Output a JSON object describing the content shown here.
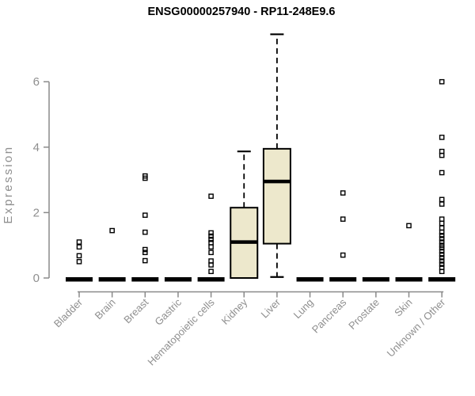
{
  "chart_data": {
    "type": "boxplot",
    "title": "ENSG00000257940 - RP11-248E9.6",
    "ylabel": "Expression",
    "xlabel": "",
    "yticks": [
      0,
      2,
      4,
      6
    ],
    "ylim": [
      0,
      6
    ],
    "grid": false,
    "legend": "none",
    "categories": [
      "Bladder",
      "Brain",
      "Breast",
      "Gastric",
      "Hematopoietic cells",
      "Kidney",
      "Liver",
      "Lung",
      "Pancreas",
      "Prostate",
      "Skin",
      "Unknown / Other"
    ],
    "series": [
      {
        "category": "Bladder",
        "q1": 0,
        "median": 0,
        "q3": 0,
        "whisker_low": 0,
        "whisker_high": 0,
        "outliers": [
          1.1,
          0.95,
          0.68,
          0.5
        ]
      },
      {
        "category": "Brain",
        "q1": 0,
        "median": 0,
        "q3": 0,
        "whisker_low": 0,
        "whisker_high": 0,
        "outliers": [
          1.45
        ]
      },
      {
        "category": "Breast",
        "q1": 0,
        "median": 0,
        "q3": 0,
        "whisker_low": 0,
        "whisker_high": 0,
        "outliers": [
          3.12,
          3.05,
          1.92,
          1.4,
          0.87,
          0.78,
          0.53
        ]
      },
      {
        "category": "Gastric",
        "q1": 0,
        "median": 0,
        "q3": 0,
        "whisker_low": 0,
        "whisker_high": 0,
        "outliers": []
      },
      {
        "category": "Hematopoietic cells",
        "q1": 0,
        "median": 0,
        "q3": 0,
        "whisker_low": 0,
        "whisker_high": 0,
        "outliers": [
          2.5,
          1.38,
          1.28,
          1.18,
          1.08,
          0.95,
          0.78,
          0.52,
          0.4,
          0.2
        ]
      },
      {
        "category": "Kidney",
        "q1": 0,
        "median": 1.1,
        "q3": 2.15,
        "whisker_low": 0,
        "whisker_high": 3.87,
        "outliers": []
      },
      {
        "category": "Liver",
        "q1": 1.05,
        "median": 2.95,
        "q3": 3.95,
        "whisker_low": 0.03,
        "whisker_high": 7.45,
        "outliers": []
      },
      {
        "category": "Lung",
        "q1": 0,
        "median": 0,
        "q3": 0,
        "whisker_low": 0,
        "whisker_high": 0,
        "outliers": []
      },
      {
        "category": "Pancreas",
        "q1": 0,
        "median": 0,
        "q3": 0,
        "whisker_low": 0,
        "whisker_high": 0,
        "outliers": [
          2.6,
          1.8,
          0.7
        ]
      },
      {
        "category": "Prostate",
        "q1": 0,
        "median": 0,
        "q3": 0,
        "whisker_low": 0,
        "whisker_high": 0,
        "outliers": []
      },
      {
        "category": "Skin",
        "q1": 0,
        "median": 0,
        "q3": 0,
        "whisker_low": 0,
        "whisker_high": 0,
        "outliers": [
          1.6
        ]
      },
      {
        "category": "Unknown / Other",
        "q1": 0,
        "median": 0,
        "q3": 0,
        "whisker_low": 0,
        "whisker_high": 0,
        "outliers": [
          6.0,
          4.3,
          3.87,
          3.75,
          3.22,
          2.4,
          2.26,
          1.8,
          1.67,
          1.53,
          1.4,
          1.3,
          1.2,
          1.1,
          1.0,
          0.92,
          0.82,
          0.72,
          0.62,
          0.52,
          0.42,
          0.32,
          0.2
        ]
      }
    ],
    "colors": {
      "box_fill": "#EDE8CC",
      "box_stroke": "#000000",
      "median": "#000000",
      "whisker": "#000000",
      "outlier": "#000000",
      "axis_line": "#8a8a8a",
      "axis_text": "#8f8f8f",
      "title": "#000000",
      "background": "#ffffff"
    }
  }
}
